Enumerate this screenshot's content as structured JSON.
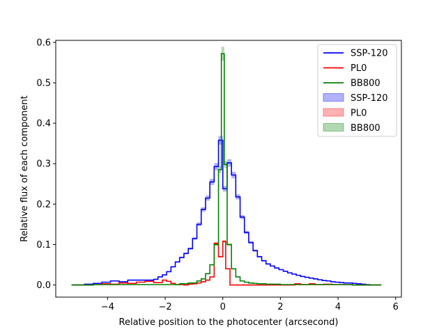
{
  "chart_data": {
    "type": "line",
    "subtype": "step-histogram",
    "title": "",
    "xlabel": "Relative position to the photocenter (arcsecond)",
    "ylabel": "Relative flux of each component",
    "xlim": [
      -5.8,
      6.2
    ],
    "ylim": [
      -0.03,
      0.605
    ],
    "xticks": [
      -4,
      -2,
      0,
      2,
      4,
      6
    ],
    "yticks": [
      0.0,
      0.1,
      0.2,
      0.3,
      0.4,
      0.5,
      0.6
    ],
    "xtick_labels": [
      "−4",
      "−2",
      "0",
      "2",
      "4",
      "6"
    ],
    "ytick_labels": [
      "0.0",
      "0.1",
      "0.2",
      "0.3",
      "0.4",
      "0.5",
      "0.6"
    ],
    "legend_position": "top-right",
    "series": [
      {
        "name": "SSP-120",
        "color": "#0000ff",
        "x": [
          -5.25,
          -4.8,
          -4.5,
          -4.2,
          -3.9,
          -3.6,
          -3.3,
          -3.0,
          -2.7,
          -2.4,
          -2.25,
          -2.1,
          -1.95,
          -1.8,
          -1.65,
          -1.5,
          -1.35,
          -1.2,
          -1.05,
          -0.9,
          -0.75,
          -0.6,
          -0.45,
          -0.3,
          -0.15,
          0.0,
          0.15,
          0.3,
          0.45,
          0.6,
          0.75,
          0.9,
          1.05,
          1.2,
          1.35,
          1.5,
          1.65,
          1.8,
          1.95,
          2.1,
          2.25,
          2.4,
          2.55,
          2.7,
          2.85,
          3.0,
          3.15,
          3.3,
          3.45,
          3.6,
          3.75,
          3.9,
          4.05,
          4.2,
          4.35,
          4.5,
          4.65,
          4.8,
          4.95,
          5.1,
          5.5
        ],
        "y": [
          0.0,
          0.002,
          0.004,
          0.007,
          0.01,
          0.008,
          0.012,
          0.012,
          0.012,
          0.014,
          0.02,
          0.025,
          0.033,
          0.045,
          0.057,
          0.068,
          0.078,
          0.09,
          0.115,
          0.15,
          0.187,
          0.215,
          0.255,
          0.293,
          0.358,
          0.238,
          0.302,
          0.272,
          0.218,
          0.168,
          0.13,
          0.105,
          0.085,
          0.07,
          0.06,
          0.052,
          0.047,
          0.042,
          0.038,
          0.034,
          0.03,
          0.027,
          0.024,
          0.021,
          0.019,
          0.017,
          0.015,
          0.013,
          0.011,
          0.01,
          0.008,
          0.007,
          0.006,
          0.005,
          0.005,
          0.004,
          0.003,
          0.002,
          0.001,
          0.0,
          0.0
        ]
      },
      {
        "name": "PL0",
        "color": "#ff0000",
        "x": [
          -5.25,
          -4.5,
          -4.2,
          -3.9,
          -3.6,
          -3.3,
          -3.0,
          -2.7,
          -2.4,
          -2.1,
          -1.95,
          -1.8,
          -1.65,
          -1.5,
          -1.35,
          -1.2,
          -1.05,
          -0.9,
          -0.75,
          -0.6,
          -0.45,
          -0.3,
          -0.15,
          0.0,
          0.1,
          0.25,
          0.4,
          0.6,
          1.0,
          1.5,
          2.0,
          2.5,
          2.7,
          3.0,
          3.2,
          3.5,
          3.8,
          4.0,
          4.5,
          5.0,
          5.5
        ],
        "y": [
          0.0,
          0.001,
          0.003,
          0.002,
          0.005,
          0.004,
          0.007,
          0.009,
          0.006,
          0.012,
          0.009,
          0.004,
          0.001,
          0.001,
          0.0,
          0.002,
          0.003,
          0.005,
          0.008,
          0.012,
          0.02,
          0.103,
          0.07,
          0.108,
          0.04,
          0.0,
          0.0,
          0.0,
          0.0,
          0.0,
          0.0,
          0.003,
          0.001,
          0.003,
          0.001,
          0.002,
          0.001,
          0.001,
          0.0,
          0.0,
          0.0
        ]
      },
      {
        "name": "BB800",
        "color": "#008000",
        "x": [
          -5.25,
          -4.5,
          -3.0,
          -2.0,
          -1.5,
          -1.2,
          -0.9,
          -0.75,
          -0.6,
          -0.45,
          -0.3,
          -0.15,
          -0.05,
          0.05,
          0.15,
          0.3,
          0.45,
          0.6,
          0.75,
          0.9,
          1.05,
          1.2,
          1.5,
          2.0,
          3.0,
          4.0,
          4.5,
          5.5
        ],
        "y": [
          0.0,
          0.001,
          0.001,
          0.001,
          0.003,
          0.005,
          0.01,
          0.015,
          0.028,
          0.05,
          0.1,
          0.285,
          0.572,
          0.298,
          0.1,
          0.04,
          0.02,
          0.01,
          0.007,
          0.005,
          0.004,
          0.003,
          0.002,
          0.001,
          0.001,
          0.001,
          0.0,
          0.0
        ]
      }
    ],
    "bands": [
      {
        "name": "SSP-120",
        "color": "#0000ff"
      },
      {
        "name": "PL0",
        "color": "#ff0000"
      },
      {
        "name": "BB800",
        "color": "#008000"
      }
    ]
  }
}
